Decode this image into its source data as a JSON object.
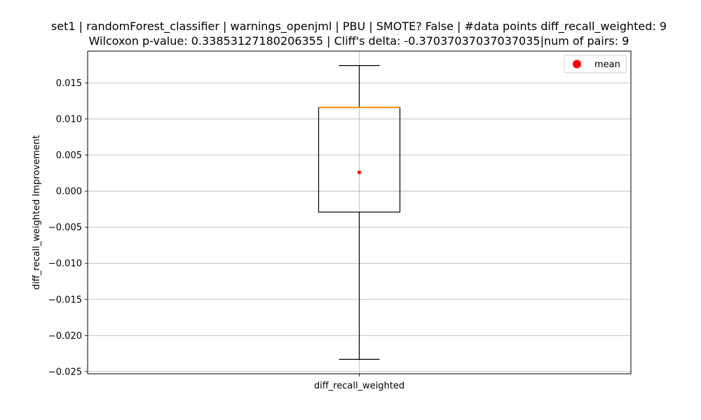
{
  "chart_data": {
    "type": "box",
    "title_line1": "set1 | randomForest_classifier | warnings_openjml | PBU | SMOTE? False | #data points diff_recall_weighted: 9",
    "title_line2": "Wilcoxon p-value: 0.33853127180206355 | Cliff's delta: -0.37037037037037035|num of pairs: 9",
    "xlabel": "",
    "ylabel": "diff_recall_weighted Improvement",
    "categories": [
      "diff_recall_weighted"
    ],
    "box": {
      "whisker_low": -0.0233,
      "q1": -0.0029,
      "median": 0.0116,
      "q3": 0.0116,
      "whisker_high": 0.0174,
      "mean": 0.0026
    },
    "ylim": [
      -0.0253,
      0.0194
    ],
    "yticks": [
      -0.025,
      -0.02,
      -0.015,
      -0.01,
      -0.005,
      0.0,
      0.005,
      0.01,
      0.015
    ],
    "ytick_labels": [
      "−0.025",
      "−0.020",
      "−0.015",
      "−0.010",
      "−0.005",
      "0.000",
      "0.005",
      "0.010",
      "0.015"
    ],
    "grid": true,
    "legend": {
      "position": "top-right",
      "entries": [
        {
          "label": "mean",
          "color": "#ff0000"
        }
      ]
    },
    "colors": {
      "median": "#ff7f0e",
      "mean": "#ff0000",
      "box": "#000000",
      "grid": "#b0b0b0"
    }
  }
}
